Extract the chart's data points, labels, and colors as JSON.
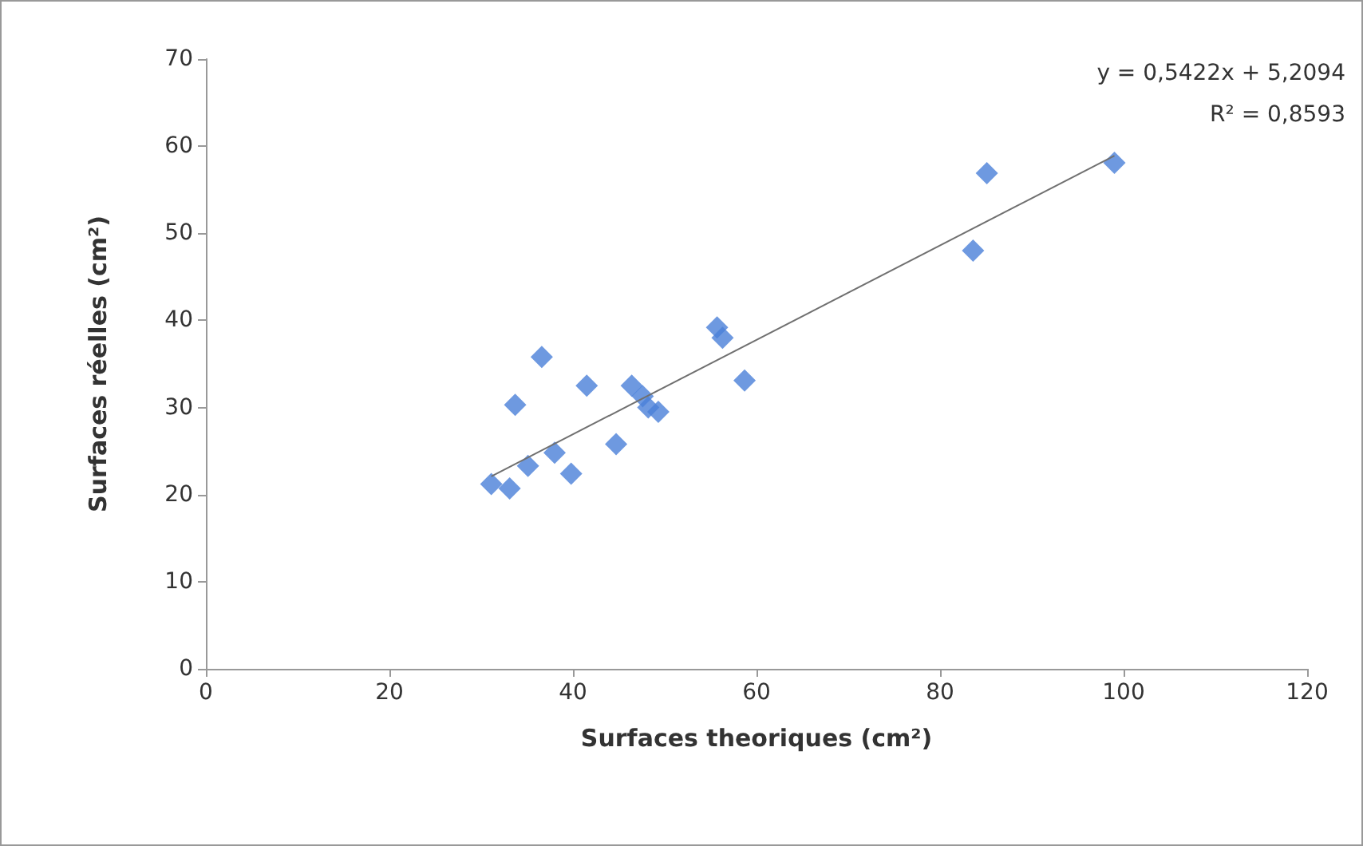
{
  "chart_data": {
    "type": "scatter",
    "xlabel": "Surfaces theoriques (cm²)",
    "ylabel": "Surfaces réelles (cm²)",
    "xlim": [
      0,
      120
    ],
    "xticks": [
      0,
      20,
      40,
      60,
      80,
      100,
      120
    ],
    "ylim": [
      0,
      70
    ],
    "yticks": [
      0,
      10,
      20,
      30,
      40,
      50,
      60,
      70
    ],
    "grid": false,
    "marker": "diamond",
    "series": [
      {
        "color": "#4a7fd8",
        "x": [
          31.1,
          33.1,
          35.1,
          33.7,
          36.6,
          38.0,
          39.8,
          41.5,
          44.7,
          46.4,
          48.2,
          47.6,
          49.3,
          55.7,
          56.3,
          58.7,
          85.1,
          83.6,
          99.0
        ],
        "values": [
          21.2,
          20.7,
          23.3,
          30.3,
          35.8,
          24.8,
          22.4,
          32.5,
          25.8,
          32.5,
          30.0,
          31.3,
          29.5,
          39.2,
          38.0,
          33.1,
          56.9,
          48.0,
          58.1
        ]
      },
      {
        "type": "line",
        "color": "#707070",
        "marker": "none",
        "line_style": "solid",
        "x": [
          31.1,
          99.0
        ],
        "values": [
          22.1,
          58.9
        ]
      }
    ],
    "annotations": [
      "y = 0,5422x + 5,2094",
      "R² = 0,8593"
    ]
  }
}
